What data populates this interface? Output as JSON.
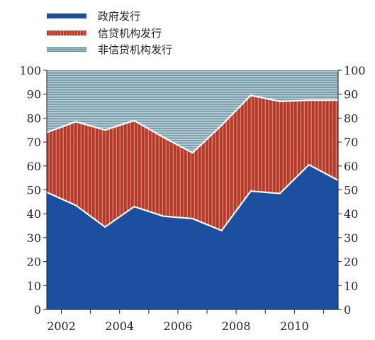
{
  "chart_data": {
    "type": "area",
    "stacked": true,
    "y_axis": {
      "min": 0,
      "max": 100,
      "step": 10,
      "ticks": [
        0,
        10,
        20,
        30,
        40,
        50,
        60,
        70,
        80,
        90,
        100
      ],
      "both_sides": true
    },
    "x_axis": {
      "tick_labels": [
        "2002",
        "2004",
        "2006",
        "2008",
        "2010"
      ]
    },
    "x": [
      2001.5,
      2002.5,
      2003.5,
      2004.5,
      2005.5,
      2006.5,
      2007.5,
      2008.5,
      2009.5,
      2010.5,
      2011.5
    ],
    "series": [
      {
        "name": "政府发行",
        "values": [
          49,
          43.5,
          34.5,
          43,
          39,
          38,
          33,
          49.5,
          48.5,
          60.5,
          54
        ],
        "color": "#1c4fa0"
      },
      {
        "name": "信贷机构发行",
        "values": [
          74,
          78.5,
          75,
          79,
          72,
          65.5,
          77,
          89.5,
          87,
          87.5,
          87.5
        ],
        "color": "#b63d2e"
      },
      {
        "name": "非信贷机构发行",
        "values": [
          100,
          100,
          100,
          100,
          100,
          100,
          100,
          100,
          100,
          100,
          100
        ],
        "color": "#7d9daa"
      }
    ],
    "values_are_cumulative_top_edges": true
  }
}
